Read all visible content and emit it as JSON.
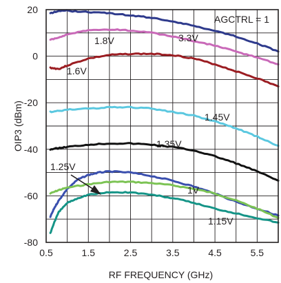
{
  "chart_data": {
    "type": "line",
    "xlabel": "RF FREQUENCY (GHz)",
    "ylabel": "OIP3 (dBm)",
    "xlim": [
      0.5,
      6.0
    ],
    "ylim": [
      -80,
      20
    ],
    "x_ticks": [
      "0.5",
      "1.5",
      "2.5",
      "3.5",
      "4.5",
      "5.5"
    ],
    "x_tick_values": [
      0.5,
      1.5,
      2.5,
      3.5,
      4.5,
      5.5
    ],
    "y_ticks": [
      "20",
      "0",
      "-20",
      "-40",
      "-60",
      "-80"
    ],
    "y_tick_values": [
      20,
      0,
      -20,
      -40,
      -60,
      -80
    ],
    "grid": true,
    "annotation": "AGCTRL = 1",
    "series": [
      {
        "name": "3.3V",
        "color": "#2e3a8c",
        "x": [
          0.6,
          0.8,
          1.0,
          1.5,
          2.0,
          2.5,
          3.0,
          3.5,
          4.0,
          4.5,
          5.0,
          5.5,
          6.0
        ],
        "y": [
          18.5,
          19.5,
          19.5,
          19,
          18.5,
          17.5,
          16.5,
          15,
          13,
          11,
          8.5,
          5.5,
          2
        ]
      },
      {
        "name": "1.8V",
        "color": "#c969b8",
        "x": [
          0.6,
          0.8,
          1.0,
          1.5,
          2.0,
          2.5,
          3.0,
          3.5,
          4.0,
          4.5,
          5.0,
          5.5,
          6.0
        ],
        "y": [
          7,
          8,
          9.5,
          11,
          11.5,
          11,
          10,
          8.5,
          6.5,
          4.5,
          2,
          -0.5,
          -3.5
        ]
      },
      {
        "name": "1.6V",
        "color": "#9b1d22",
        "x": [
          0.6,
          0.8,
          1.0,
          1.5,
          2.0,
          2.5,
          3.0,
          3.5,
          4.0,
          4.5,
          5.0,
          5.5,
          6.0
        ],
        "y": [
          -5,
          -5.5,
          -4,
          -1,
          0.5,
          1,
          1,
          0.5,
          -1,
          -3.5,
          -6.5,
          -9.5,
          -13
        ]
      },
      {
        "name": "1.45V",
        "color": "#5bc8e0",
        "x": [
          0.6,
          0.8,
          1.0,
          1.5,
          2.0,
          2.5,
          3.0,
          3.5,
          4.0,
          4.5,
          5.0,
          5.5,
          6.0
        ],
        "y": [
          -24,
          -23.5,
          -23,
          -22.5,
          -22,
          -22,
          -22.5,
          -24,
          -25.5,
          -28,
          -31,
          -34.5,
          -38.5
        ]
      },
      {
        "name": "1.35V",
        "color": "#111111",
        "x": [
          0.6,
          0.8,
          1.0,
          1.5,
          2.0,
          2.5,
          3.0,
          3.5,
          4.0,
          4.5,
          5.0,
          5.5,
          6.0
        ],
        "y": [
          -40,
          -39.5,
          -39,
          -38,
          -37.5,
          -37.5,
          -38,
          -39,
          -40.5,
          -43,
          -46,
          -49.5,
          -53.5
        ]
      },
      {
        "name": "1V",
        "color": "#3a4fae",
        "x": [
          0.6,
          0.7,
          0.8,
          1.0,
          1.25,
          1.5,
          1.75,
          2.0,
          2.5,
          3.0,
          3.5,
          4.0,
          4.5,
          5.0,
          5.5,
          6.0
        ],
        "y": [
          -69,
          -65,
          -62,
          -57,
          -53,
          -51,
          -50,
          -49.5,
          -50,
          -51.5,
          -53.5,
          -56,
          -59,
          -62.5,
          -65.5,
          -68.5
        ]
      },
      {
        "name": "1.25V",
        "color": "#7cc354",
        "x": [
          0.6,
          0.8,
          1.0,
          1.5,
          2.0,
          2.5,
          3.0,
          3.5,
          4.0,
          4.5,
          5.0,
          5.5,
          6.0
        ],
        "y": [
          -59,
          -57.5,
          -56.5,
          -55,
          -54,
          -54,
          -54.5,
          -55.5,
          -57,
          -59,
          -62,
          -65.5,
          -69.5
        ]
      },
      {
        "name": "1.15V",
        "color": "#159487",
        "x": [
          0.6,
          0.7,
          0.8,
          1.0,
          1.25,
          1.5,
          2.0,
          2.5,
          3.0,
          3.5,
          4.0,
          4.5,
          5.0,
          5.5,
          6.0
        ],
        "y": [
          -76,
          -71,
          -67,
          -63,
          -61,
          -59.5,
          -58.5,
          -58.5,
          -59.5,
          -61,
          -63,
          -65.5,
          -67.5,
          -69.5,
          -71.5
        ]
      }
    ]
  }
}
